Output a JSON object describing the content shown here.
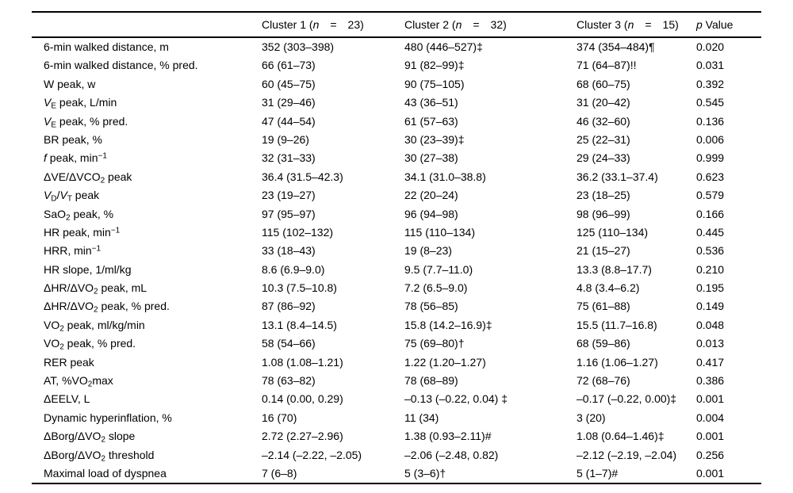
{
  "colors": {
    "text": "#000000",
    "rule": "#000000",
    "background": "#ffffff"
  },
  "table": {
    "header": {
      "col0": "",
      "cluster1": [
        {
          "t": "Cluster 1 ("
        },
        {
          "t": "n",
          "i": true
        },
        {
          "t": " = 23)"
        }
      ],
      "cluster2": [
        {
          "t": "Cluster 2 ("
        },
        {
          "t": "n",
          "i": true
        },
        {
          "t": " = 32)"
        }
      ],
      "cluster3": [
        {
          "t": "Cluster 3 ("
        },
        {
          "t": "n",
          "i": true
        },
        {
          "t": " = 15)"
        }
      ],
      "p": [
        {
          "t": "p",
          "i": true
        },
        {
          "t": " Value"
        }
      ]
    },
    "rows": [
      {
        "label": [
          {
            "t": "6-min walked distance, m"
          }
        ],
        "c1": "352 (303–398)",
        "c2": "480 (446–527)‡",
        "c3": "374 (354–484)¶",
        "p": "0.020"
      },
      {
        "label": [
          {
            "t": "6-min walked distance, % pred."
          }
        ],
        "c1": "66 (61–73)",
        "c2": "91 (82–99)‡",
        "c3": "71 (64–87)!!",
        "p": "0.031"
      },
      {
        "label": [
          {
            "t": "W peak, w"
          }
        ],
        "c1": "60 (45–75)",
        "c2": "90 (75–105)",
        "c3": "68 (60–75)",
        "p": "0.392"
      },
      {
        "label": [
          {
            "t": "V",
            "i": true
          },
          {
            "t": "E",
            "sub": true
          },
          {
            "t": " peak, L/min"
          }
        ],
        "c1": "31 (29–46)",
        "c2": "43 (36–51)",
        "c3": "31 (20–42)",
        "p": "0.545"
      },
      {
        "label": [
          {
            "t": "V",
            "i": true
          },
          {
            "t": "E",
            "sub": true
          },
          {
            "t": " peak, % pred."
          }
        ],
        "c1": "47 (44–54)",
        "c2": "61 (57–63)",
        "c3": "46 (32–60)",
        "p": "0.136"
      },
      {
        "label": [
          {
            "t": "BR peak, %"
          }
        ],
        "c1": "19 (9–26)",
        "c2": "30 (23–39)‡",
        "c3": "25 (22–31)",
        "p": "0.006"
      },
      {
        "label": [
          {
            "t": "f",
            "i": true
          },
          {
            "t": " peak, min"
          },
          {
            "t": "−1",
            "sup": true
          }
        ],
        "c1": "32 (31–33)",
        "c2": "30 (27–38)",
        "c3": "29 (24–33)",
        "p": "0.999"
      },
      {
        "label": [
          {
            "t": "ΔVE/ΔVCO"
          },
          {
            "t": "2",
            "sub": true
          },
          {
            "t": " peak"
          }
        ],
        "c1": "36.4 (31.5–42.3)",
        "c2": "34.1 (31.0–38.8)",
        "c3": "36.2 (33.1–37.4)",
        "p": "0.623"
      },
      {
        "label": [
          {
            "t": "V",
            "i": true
          },
          {
            "t": "D",
            "sub": true
          },
          {
            "t": "/"
          },
          {
            "t": "V",
            "i": true
          },
          {
            "t": "T",
            "sub": true
          },
          {
            "t": " peak"
          }
        ],
        "c1": "23 (19–27)",
        "c2": "22 (20–24)",
        "c3": "23 (18–25)",
        "p": "0.579"
      },
      {
        "label": [
          {
            "t": "SaO"
          },
          {
            "t": "2",
            "sub": true
          },
          {
            "t": " peak, %"
          }
        ],
        "c1": "97 (95–97)",
        "c2": "96 (94–98)",
        "c3": "98 (96–99)",
        "p": "0.166"
      },
      {
        "label": [
          {
            "t": "HR peak, min"
          },
          {
            "t": "−1",
            "sup": true
          }
        ],
        "c1": "115 (102–132)",
        "c2": "115 (110–134)",
        "c3": "125 (110–134)",
        "p": "0.445"
      },
      {
        "label": [
          {
            "t": "HRR, min"
          },
          {
            "t": "−1",
            "sup": true
          }
        ],
        "c1": "33 (18–43)",
        "c2": "19 (8–23)",
        "c3": "21 (15–27)",
        "p": "0.536"
      },
      {
        "label": [
          {
            "t": "HR slope, 1/ml/kg"
          }
        ],
        "c1": "8.6 (6.9–9.0)",
        "c2": "9.5 (7.7–11.0)",
        "c3": "13.3 (8.8–17.7)",
        "p": "0.210"
      },
      {
        "label": [
          {
            "t": "ΔHR/ΔVO"
          },
          {
            "t": "2",
            "sub": true
          },
          {
            "t": " peak, mL"
          }
        ],
        "c1": "10.3 (7.5–10.8)",
        "c2": "7.2 (6.5–9.0)",
        "c3": "4.8 (3.4–6.2)",
        "p": "0.195"
      },
      {
        "label": [
          {
            "t": "ΔHR/ΔVO"
          },
          {
            "t": "2",
            "sub": true
          },
          {
            "t": " peak, % pred."
          }
        ],
        "c1": "87 (86–92)",
        "c2": "78 (56–85)",
        "c3": "75 (61–88)",
        "p": "0.149"
      },
      {
        "label": [
          {
            "t": "VO"
          },
          {
            "t": "2",
            "sub": true
          },
          {
            "t": " peak, ml/kg/min"
          }
        ],
        "c1": "13.1 (8.4–14.5)",
        "c2": "15.8 (14.2–16.9)‡",
        "c3": "15.5 (11.7–16.8)",
        "p": "0.048"
      },
      {
        "label": [
          {
            "t": "VO"
          },
          {
            "t": "2",
            "sub": true
          },
          {
            "t": " peak, % pred."
          }
        ],
        "c1": "58 (54–66)",
        "c2": "75 (69–80)†",
        "c3": "68 (59–86)",
        "p": "0.013"
      },
      {
        "label": [
          {
            "t": "RER peak"
          }
        ],
        "c1": "1.08 (1.08–1.21)",
        "c2": "1.22 (1.20–1.27)",
        "c3": "1.16 (1.06–1.27)",
        "p": "0.417"
      },
      {
        "label": [
          {
            "t": "AT, %VO"
          },
          {
            "t": "2",
            "sub": true
          },
          {
            "t": "max"
          }
        ],
        "c1": "78 (63–82)",
        "c2": "78 (68–89)",
        "c3": "72 (68–76)",
        "p": "0.386"
      },
      {
        "label": [
          {
            "t": "ΔEELV, L"
          }
        ],
        "c1": "0.14 (0.00, 0.29)",
        "c2": "–0.13 (–0.22, 0.04) ‡",
        "c3": "–0.17 (–0.22, 0.00)‡",
        "p": "0.001"
      },
      {
        "label": [
          {
            "t": "Dynamic hyperinflation, %"
          }
        ],
        "c1": "16 (70)",
        "c2": "11 (34)",
        "c3": "3 (20)",
        "p": "0.004"
      },
      {
        "label": [
          {
            "t": "ΔBorg/ΔVO"
          },
          {
            "t": "2",
            "sub": true
          },
          {
            "t": " slope"
          }
        ],
        "c1": "2.72 (2.27–2.96)",
        "c2": "1.38 (0.93–2.11)#",
        "c3": "1.08 (0.64–1.46)‡",
        "p": "0.001"
      },
      {
        "label": [
          {
            "t": "ΔBorg/ΔVO"
          },
          {
            "t": "2",
            "sub": true
          },
          {
            "t": " threshold"
          }
        ],
        "c1": "–2.14 (–2.22, –2.05)",
        "c2": "–2.06 (–2.48, 0.82)",
        "c3": "–2.12 (–2.19, –2.04)",
        "p": "0.256"
      },
      {
        "label": [
          {
            "t": "Maximal load of dyspnea"
          }
        ],
        "c1": "7 (6–8)",
        "c2": "5 (3–6)†",
        "c3": "5 (1–7)#",
        "p": "0.001"
      }
    ]
  }
}
